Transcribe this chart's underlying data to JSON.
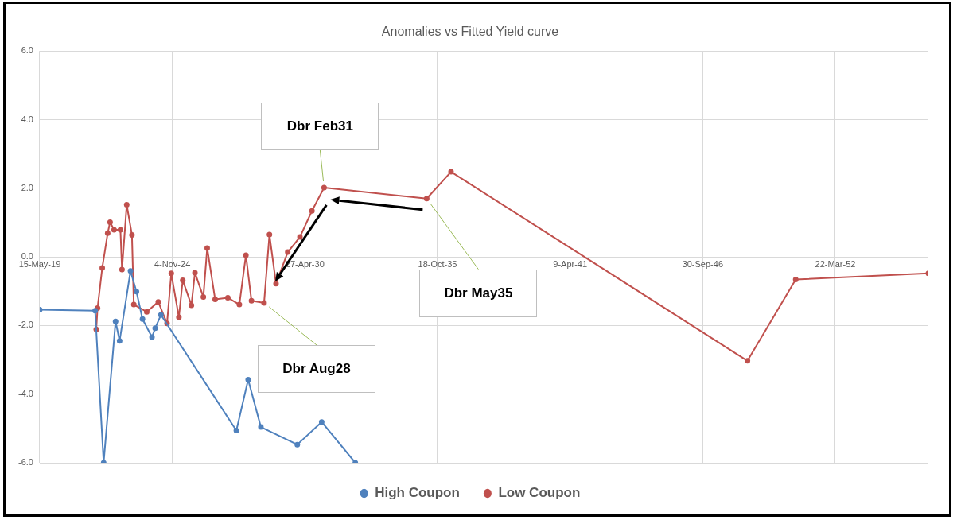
{
  "chart_data": {
    "type": "line",
    "title": "Anomalies vs Fitted Yield curve",
    "xlim": [
      "2019-05-15",
      "2056-01-25"
    ],
    "xticks": [
      {
        "value": "2019-05-15",
        "label": "15-May-19"
      },
      {
        "value": "2024-11-04",
        "label": "4-Nov-24"
      },
      {
        "value": "2030-04-27",
        "label": "27-Apr-30"
      },
      {
        "value": "2035-10-18",
        "label": "18-Oct-35"
      },
      {
        "value": "2041-04-09",
        "label": "9-Apr-41"
      },
      {
        "value": "2046-09-30",
        "label": "30-Sep-46"
      },
      {
        "value": "2052-03-22",
        "label": "22-Mar-52"
      }
    ],
    "ylim": [
      -6,
      6
    ],
    "yticks": [
      {
        "value": -6,
        "label": "-6.0"
      },
      {
        "value": -4,
        "label": "-4.0"
      },
      {
        "value": -2,
        "label": "-2.0"
      },
      {
        "value": 0,
        "label": "0.0"
      },
      {
        "value": 2,
        "label": "2.0"
      },
      {
        "value": 4,
        "label": "4.0"
      },
      {
        "value": 6,
        "label": "6.0"
      }
    ],
    "grid": true,
    "legend": "bottom",
    "marker": "circle",
    "line_style": "solid",
    "annotations": [
      {
        "text": "Dbr Feb31",
        "x": "2031-02-10",
        "y": 2.02
      },
      {
        "text": "Dbr May35",
        "x": "2035-05-08",
        "y": 1.7
      },
      {
        "text": "Dbr Aug28",
        "x": "2028-08-19",
        "y": -1.34
      }
    ],
    "series": [
      {
        "name": "High Coupon",
        "color": "#4f81bd",
        "x": [
          "2019-05-15",
          "2021-08-28",
          "2022-01-03",
          "2022-07-02",
          "2022-09-01",
          "2023-02-12",
          "2023-05-13",
          "2023-08-12",
          "2024-01-02",
          "2024-02-19",
          "2024-05-16",
          "2027-06-28",
          "2027-12-23",
          "2028-07-02",
          "2030-01-02",
          "2031-01-05",
          "2032-05-26"
        ],
        "values": [
          -1.54,
          -1.57,
          -6.0,
          -1.88,
          -2.45,
          -0.41,
          -1.01,
          -1.81,
          -2.34,
          -2.08,
          -1.69,
          -5.06,
          -3.58,
          -4.96,
          -5.47,
          -4.81,
          -6.0
        ]
      },
      {
        "name": "Low Coupon",
        "color": "#c0504d",
        "x": [
          "2021-09-14",
          "2021-10-03",
          "2021-12-13",
          "2022-03-05",
          "2022-04-10",
          "2022-06-09",
          "2022-09-13",
          "2022-10-07",
          "2022-12-17",
          "2023-03-06",
          "2023-04-03",
          "2023-10-15",
          "2024-04-06",
          "2024-08-16",
          "2024-10-19",
          "2025-02-11",
          "2025-04-10",
          "2025-08-19",
          "2025-10-11",
          "2026-02-15",
          "2026-04-14",
          "2026-08-12",
          "2027-02-19",
          "2027-08-12",
          "2027-11-19",
          "2028-02-11",
          "2028-08-19",
          "2028-11-08",
          "2029-02-15",
          "2029-08-11",
          "2030-02-11",
          "2030-08-11",
          "2031-02-10",
          "2035-05-08",
          "2036-05-09",
          "2048-08-05",
          "2050-08-03",
          "2056-01-25"
        ],
        "values": [
          -2.11,
          -1.49,
          -0.32,
          0.69,
          1.01,
          0.79,
          0.79,
          -0.37,
          1.52,
          0.64,
          -1.39,
          -1.6,
          -1.31,
          -1.94,
          -0.48,
          -1.76,
          -0.68,
          -1.41,
          -0.46,
          -1.17,
          0.26,
          -1.24,
          -1.19,
          -1.39,
          0.05,
          -1.28,
          -1.34,
          0.65,
          -0.78,
          0.14,
          0.58,
          1.34,
          2.02,
          1.7,
          2.48,
          -3.03,
          -0.66,
          -0.48
        ]
      }
    ]
  }
}
